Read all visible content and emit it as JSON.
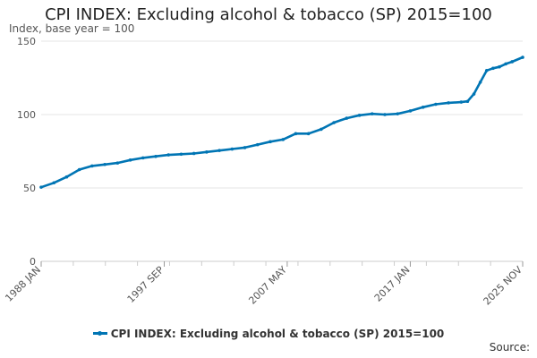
{
  "chart_data": {
    "type": "line",
    "title": "CPI INDEX: Excluding alcohol & tobacco (SP) 2015=100",
    "subtitle": "Index, base year = 100",
    "ylabel": "Index, base year = 100",
    "xlabel": "",
    "ylim": [
      0,
      150
    ],
    "y_ticks": [
      0,
      50,
      100,
      150
    ],
    "x_tick_labels": [
      "1988 JAN",
      "1997 SEP",
      "2007 MAY",
      "2017 JAN",
      "2025 NOV"
    ],
    "x_range_years": [
      1988.0,
      2025.83
    ],
    "x_tick_positions_years": [
      1988.0,
      1997.67,
      2007.33,
      2017.0,
      2025.83
    ],
    "grid": true,
    "legend_position": "bottom",
    "colors": {
      "series": "#0075b4",
      "grid": "#e4e4e4",
      "axis": "#cccccc"
    },
    "series": [
      {
        "name": "CPI INDEX: Excluding alcohol & tobacco (SP) 2015=100",
        "x": [
          1988.0,
          1989.0,
          1990.0,
          1991.0,
          1992.0,
          1993.0,
          1994.0,
          1995.0,
          1996.0,
          1997.0,
          1998.0,
          1999.0,
          2000.0,
          2001.0,
          2002.0,
          2003.0,
          2004.0,
          2005.0,
          2006.0,
          2007.0,
          2008.0,
          2009.0,
          2010.0,
          2011.0,
          2012.0,
          2013.0,
          2014.0,
          2015.0,
          2016.0,
          2017.0,
          2018.0,
          2019.0,
          2020.0,
          2021.0,
          2021.5,
          2022.0,
          2022.5,
          2023.0,
          2023.5,
          2024.0,
          2024.5,
          2025.0,
          2025.83
        ],
        "values": [
          50.5,
          53.5,
          57.5,
          62.5,
          65.0,
          66.0,
          67.0,
          69.0,
          70.5,
          71.5,
          72.5,
          73.0,
          73.5,
          74.5,
          75.5,
          76.5,
          77.5,
          79.5,
          81.5,
          83.0,
          87.0,
          87.0,
          90.0,
          94.5,
          97.5,
          99.5,
          100.5,
          100.0,
          100.5,
          102.5,
          105.0,
          107.0,
          108.0,
          108.5,
          109.0,
          114.0,
          122.0,
          130.0,
          131.5,
          132.5,
          134.5,
          136.0,
          139.0
        ]
      }
    ],
    "source_label": "Source:"
  }
}
